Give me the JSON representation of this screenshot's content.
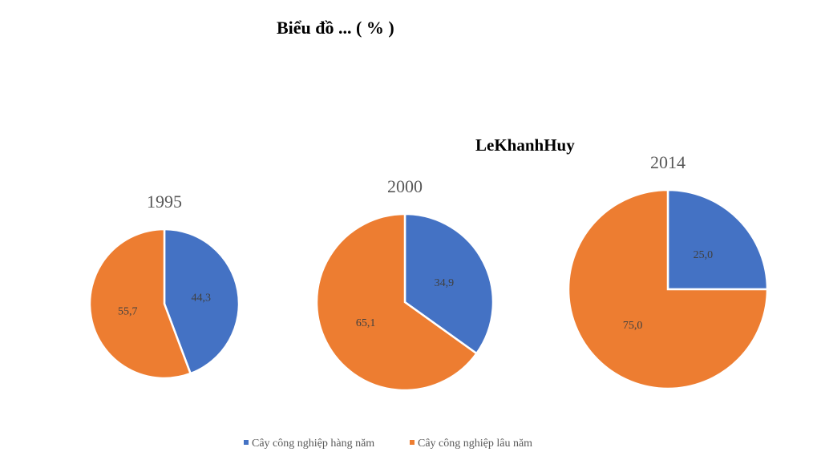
{
  "title": "Biểu đồ ... ( % )",
  "watermark": "LeKhanhHuy",
  "colors": {
    "annual": "#4472C4",
    "perennial": "#ED7D31"
  },
  "legend": [
    {
      "label": "Cây công nghiệp hàng năm",
      "color": "#4472C4"
    },
    {
      "label": "Cây công nghiệp lâu năm",
      "color": "#ED7D31"
    }
  ],
  "chart_data": [
    {
      "type": "pie",
      "title": "1995",
      "categories": [
        "Cây công nghiệp hàng năm",
        "Cây công nghiệp lâu năm"
      ],
      "values": [
        44.3,
        55.7
      ],
      "value_labels": [
        "44,3",
        "55,7"
      ]
    },
    {
      "type": "pie",
      "title": "2000",
      "categories": [
        "Cây công nghiệp hàng năm",
        "Cây công nghiệp lâu năm"
      ],
      "values": [
        34.9,
        65.1
      ],
      "value_labels": [
        "34,9",
        "65,1"
      ]
    },
    {
      "type": "pie",
      "title": "2014",
      "categories": [
        "Cây công nghiệp hàng năm",
        "Cây công nghiệp lâu năm"
      ],
      "values": [
        25.0,
        75.0
      ],
      "value_labels": [
        "25,0",
        "75,0"
      ]
    }
  ]
}
